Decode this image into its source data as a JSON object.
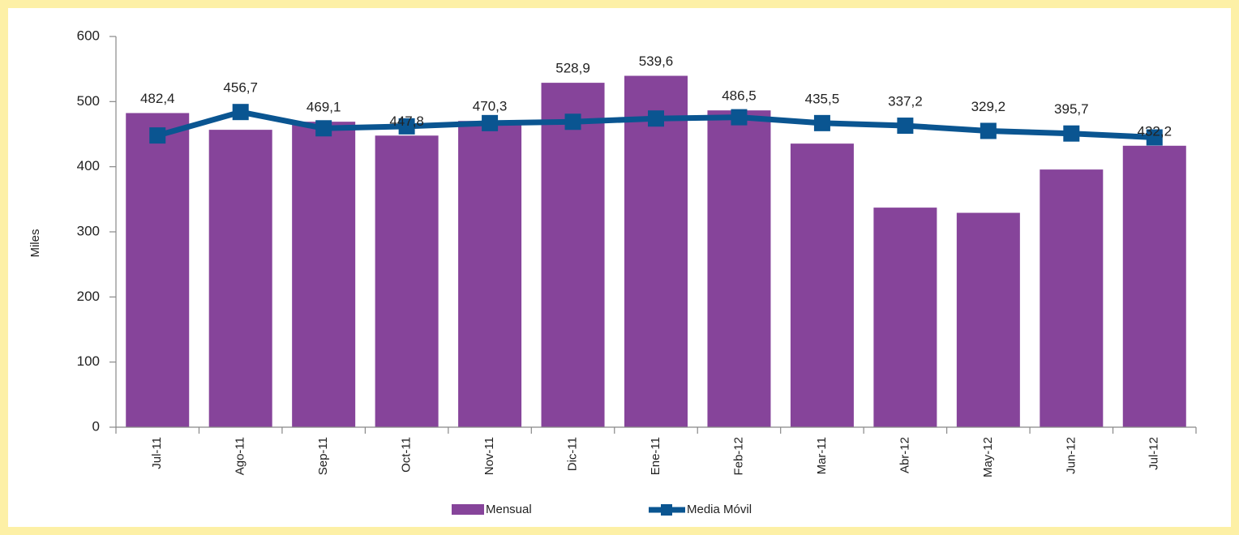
{
  "chart_data": {
    "type": "bar",
    "y_label": "Miles",
    "categories": [
      "Jul-11",
      "Ago-11",
      "Sep-11",
      "Oct-11",
      "Nov-11",
      "Dic-11",
      "Ene-11",
      "Feb-12",
      "Mar-11",
      "Abr-12",
      "May-12",
      "Jun-12",
      "Jul-12"
    ],
    "series": [
      {
        "name": "Mensual",
        "type": "bar",
        "color": "#86449a",
        "values": [
          482.4,
          456.7,
          469.1,
          447.8,
          470.3,
          528.9,
          539.6,
          486.5,
          435.5,
          337.2,
          329.2,
          395.7,
          432.2
        ],
        "value_labels": [
          "482,4",
          "456,7",
          "469,1",
          "447,8",
          "470,3",
          "528,9",
          "539,6",
          "486,5",
          "435,5",
          "337,2",
          "329,2",
          "395,7",
          "432,2"
        ]
      },
      {
        "name": "Media Móvil",
        "type": "line",
        "color": "#0a5591",
        "values": [
          448,
          484,
          459,
          462,
          467,
          469,
          474,
          476,
          467,
          463,
          455,
          451,
          445
        ]
      }
    ],
    "ylim": [
      0,
      600
    ],
    "yticks": [
      0,
      100,
      200,
      300,
      400,
      500,
      600
    ]
  }
}
